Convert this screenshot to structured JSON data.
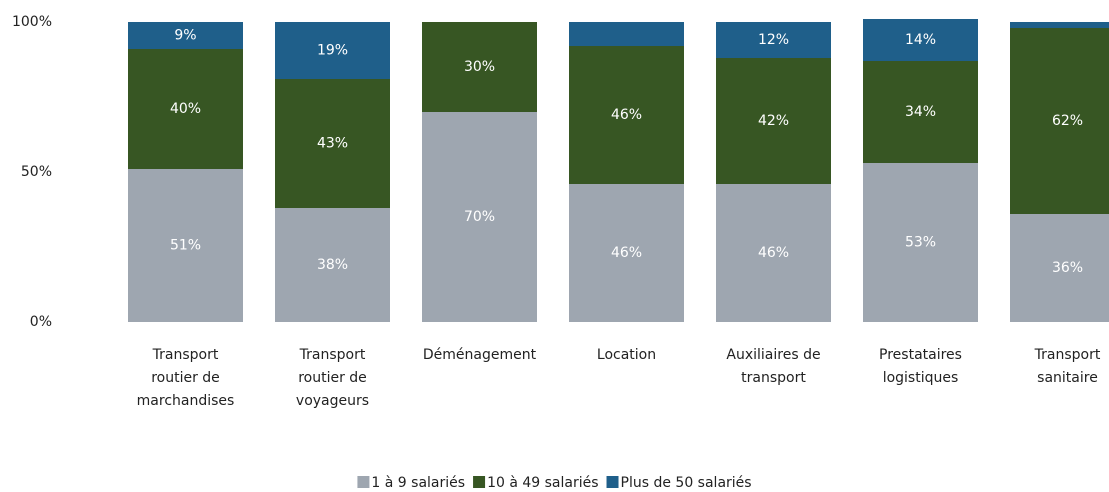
{
  "chart_data": {
    "type": "stacked_bar",
    "categories": [
      [
        "Transport",
        "routier de",
        "marchandises"
      ],
      [
        "Transport",
        "routier  de",
        "voyageurs"
      ],
      [
        "Déménagement"
      ],
      [
        "Location"
      ],
      [
        "Auxiliaires de",
        "transport"
      ],
      [
        "Prestataires",
        "logistiques"
      ],
      [
        "Transport",
        "sanitaire"
      ]
    ],
    "series": [
      {
        "name": "1 à 9 salariés",
        "color": "#9ea6b0",
        "values": [
          51,
          38,
          70,
          46,
          46,
          53,
          36
        ],
        "value_labels": [
          "51%",
          "38%",
          "70%",
          "46%",
          "46%",
          "53%",
          "36%"
        ]
      },
      {
        "name": "10 à 49 salariés",
        "color": "#375623",
        "values": [
          40,
          43,
          30,
          46,
          42,
          34,
          62
        ],
        "value_labels": [
          "40%",
          "43%",
          "30%",
          "46%",
          "42%",
          "34%",
          "62%"
        ]
      },
      {
        "name": "Plus de 50 salariés",
        "color": "#1f5f8a",
        "values": [
          9,
          19,
          0,
          8,
          12,
          14,
          2
        ],
        "value_labels": [
          "9%",
          "19%",
          null,
          null,
          "12%",
          "14%",
          null
        ]
      }
    ],
    "ylim": [
      0,
      100
    ],
    "yticks": [
      {
        "value": 0,
        "label": "0%"
      },
      {
        "value": 50,
        "label": "50%"
      },
      {
        "value": 100,
        "label": "100%"
      }
    ],
    "grid": false,
    "legend": "bottom"
  }
}
